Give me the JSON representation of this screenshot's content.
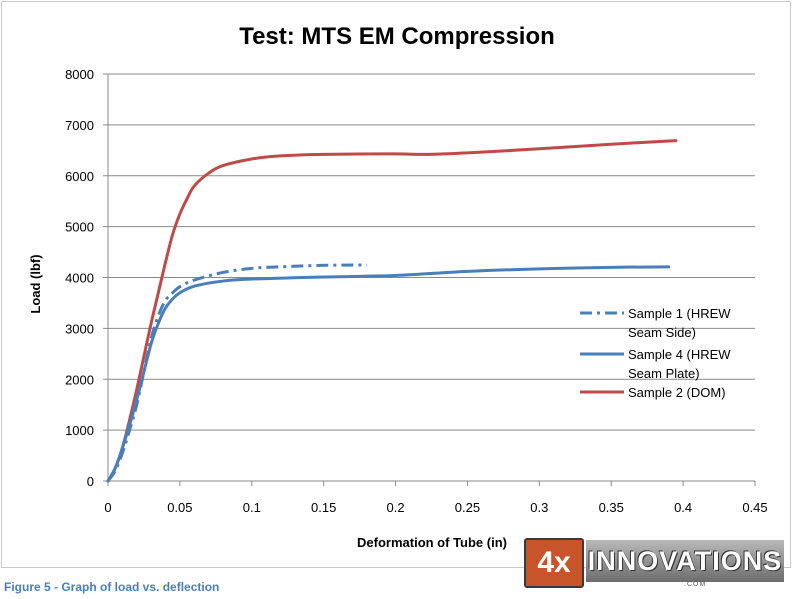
{
  "chart_data": {
    "type": "line",
    "title": "Test: MTS EM Compression",
    "xlabel": "Deformation of Tube (in)",
    "ylabel": "Load  (lbf)",
    "xlim": [
      0,
      0.45
    ],
    "ylim": [
      0,
      8000
    ],
    "x_ticks": [
      0,
      0.05,
      0.1,
      0.15,
      0.2,
      0.25,
      0.3,
      0.35,
      0.4,
      0.45
    ],
    "x_tick_labels": [
      "0",
      "0.05",
      "0.1",
      "0.15",
      "0.2",
      "0.25",
      "0.3",
      "0.35",
      "0.4",
      "0.45"
    ],
    "y_ticks": [
      0,
      1000,
      2000,
      3000,
      4000,
      5000,
      6000,
      7000,
      8000
    ],
    "y_tick_labels": [
      "0",
      "1000",
      "2000",
      "3000",
      "4000",
      "5000",
      "6000",
      "7000",
      "8000"
    ],
    "grid": "horizontal",
    "legend_position": "right",
    "series": [
      {
        "name": "Sample 1 (HREW Seam Side)",
        "legend_lines": [
          "Sample 1 (HREW",
          "Seam Side)"
        ],
        "color": "#4a7ebb",
        "dash": "dash-dot",
        "points": [
          [
            0,
            0
          ],
          [
            0.005,
            200
          ],
          [
            0.01,
            550
          ],
          [
            0.015,
            1000
          ],
          [
            0.02,
            1500
          ],
          [
            0.025,
            2150
          ],
          [
            0.03,
            2800
          ],
          [
            0.035,
            3250
          ],
          [
            0.04,
            3550
          ],
          [
            0.045,
            3700
          ],
          [
            0.05,
            3820
          ],
          [
            0.06,
            3950
          ],
          [
            0.08,
            4100
          ],
          [
            0.1,
            4180
          ],
          [
            0.12,
            4210
          ],
          [
            0.15,
            4240
          ],
          [
            0.18,
            4245
          ]
        ]
      },
      {
        "name": "Sample 4 (HREW Seam Plate)",
        "legend_lines": [
          "Sample 4 (HREW",
          "Seam Plate)"
        ],
        "color": "#4a7ebb",
        "dash": "solid",
        "points": [
          [
            0,
            0
          ],
          [
            0.005,
            250
          ],
          [
            0.01,
            650
          ],
          [
            0.015,
            1100
          ],
          [
            0.02,
            1600
          ],
          [
            0.025,
            2150
          ],
          [
            0.03,
            2700
          ],
          [
            0.035,
            3100
          ],
          [
            0.04,
            3400
          ],
          [
            0.045,
            3580
          ],
          [
            0.05,
            3700
          ],
          [
            0.06,
            3830
          ],
          [
            0.08,
            3930
          ],
          [
            0.1,
            3970
          ],
          [
            0.15,
            4010
          ],
          [
            0.2,
            4040
          ],
          [
            0.25,
            4120
          ],
          [
            0.3,
            4170
          ],
          [
            0.35,
            4200
          ],
          [
            0.39,
            4210
          ]
        ]
      },
      {
        "name": "Sample 2 (DOM)",
        "legend_lines": [
          "Sample 2 (DOM)"
        ],
        "color": "#be4b48",
        "dash": "solid",
        "points": [
          [
            0,
            0
          ],
          [
            0.005,
            250
          ],
          [
            0.01,
            650
          ],
          [
            0.015,
            1200
          ],
          [
            0.02,
            1800
          ],
          [
            0.025,
            2450
          ],
          [
            0.03,
            3100
          ],
          [
            0.035,
            3700
          ],
          [
            0.04,
            4300
          ],
          [
            0.045,
            4850
          ],
          [
            0.05,
            5250
          ],
          [
            0.055,
            5550
          ],
          [
            0.06,
            5800
          ],
          [
            0.07,
            6050
          ],
          [
            0.08,
            6200
          ],
          [
            0.1,
            6330
          ],
          [
            0.12,
            6390
          ],
          [
            0.15,
            6420
          ],
          [
            0.2,
            6430
          ],
          [
            0.22,
            6420
          ],
          [
            0.25,
            6450
          ],
          [
            0.3,
            6530
          ],
          [
            0.35,
            6620
          ],
          [
            0.395,
            6690
          ]
        ]
      }
    ]
  },
  "caption": "Figure 5 - Graph of load vs. deflection",
  "logo": {
    "badge": "4x",
    "word": "INNOVATIONS",
    "dotcom": ".COM"
  }
}
